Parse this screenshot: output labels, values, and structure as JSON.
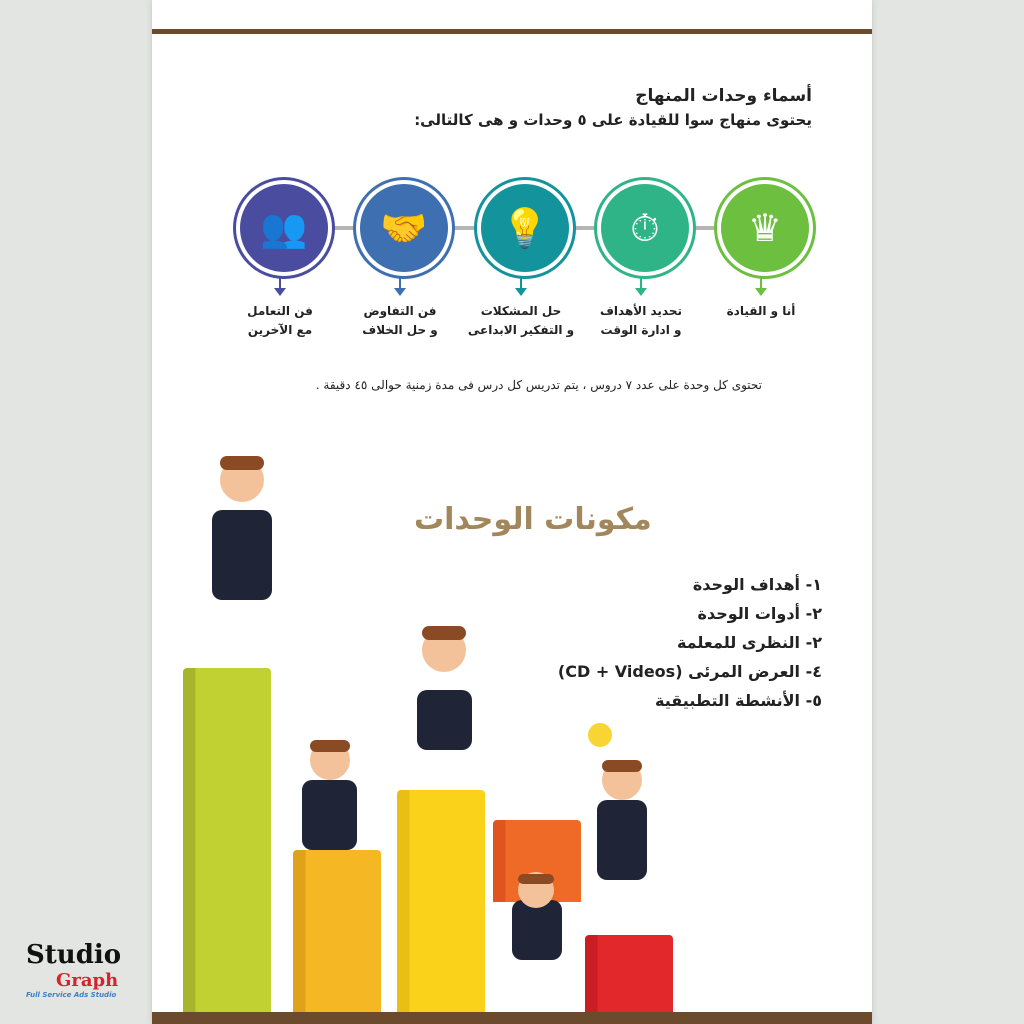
{
  "header": {
    "title": "أسماء وحدات المنهاج",
    "subtitle": "يحتوى منهاج سوا للقيادة على ٥ وحدات و هى كالتالى:"
  },
  "units": [
    {
      "line1": "أنا و القيادة",
      "line2": "",
      "color": "#6cbf3f",
      "icon": "crowned-person-icon"
    },
    {
      "line1": "تحديد الأهداف",
      "line2": "و ادارة الوقت",
      "color": "#2fb488",
      "icon": "stopwatch-calendar-icon"
    },
    {
      "line1": "حل المشكلات",
      "line2": "و التفكير الابداعى",
      "color": "#13939c",
      "icon": "lightbulb-icon"
    },
    {
      "line1": "فن التفاوض",
      "line2": "و حل الخلاف",
      "color": "#3e6fb1",
      "icon": "handshake-icon"
    },
    {
      "line1": "فن التعامل",
      "line2": "مع الآخرين",
      "color": "#4a4c9f",
      "icon": "team-growth-icon"
    }
  ],
  "note": "تحتوى كل وحدة على عدد ٧ دروس ، يتم تدريس كل درس فى مدة زمنية حوالى ٤٥ دقيقة .",
  "components": {
    "title": "مكونات الوحدات",
    "items": [
      "١- أهداف الوحدة",
      "٢- أدوات الوحدة",
      "٢- النظرى للمعلمة",
      "٤-  العرض المرئى (CD + Videos)",
      "٥- الأنشطة التطبيقية"
    ]
  },
  "colors": {
    "accent_brown": "#6b4a2e",
    "title_gold": "#a3875c"
  },
  "logo": {
    "line1": "Studio",
    "line2": "Graph",
    "tagline": "Full Service Ads Studio"
  }
}
